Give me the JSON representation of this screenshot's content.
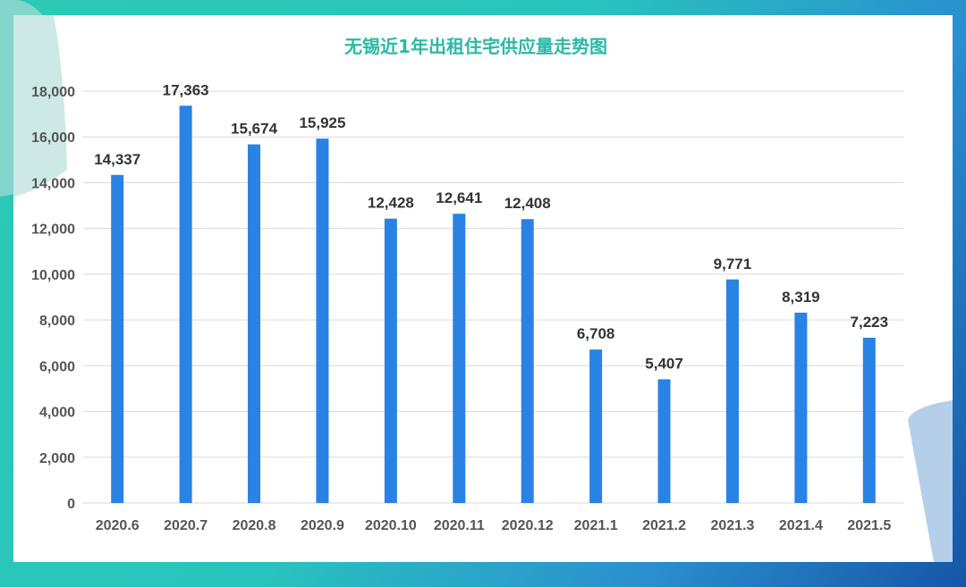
{
  "chart_data": {
    "type": "bar",
    "title": "无锡近1年出租住宅供应量走势图",
    "categories": [
      "2020.6",
      "2020.7",
      "2020.8",
      "2020.9",
      "2020.10",
      "2020.11",
      "2020.12",
      "2021.1",
      "2021.2",
      "2021.3",
      "2021.4",
      "2021.5"
    ],
    "values": [
      14337,
      17363,
      15674,
      15925,
      12428,
      12641,
      12408,
      6708,
      5407,
      9771,
      8319,
      7223
    ],
    "value_labels": [
      "14,337",
      "17,363",
      "15,674",
      "15,925",
      "12,428",
      "12,641",
      "12,408",
      "6,708",
      "5,407",
      "9,771",
      "8,319",
      "7,223"
    ],
    "yticks": [
      "0",
      "2,000",
      "4,000",
      "6,000",
      "8,000",
      "10,000",
      "12,000",
      "14,000",
      "16,000",
      "18,000"
    ],
    "ylim": [
      0,
      18000
    ],
    "xlabel": "",
    "ylabel": "",
    "grid": true,
    "bar_color": "#2a82e4",
    "title_color": "#2bb9a6"
  }
}
